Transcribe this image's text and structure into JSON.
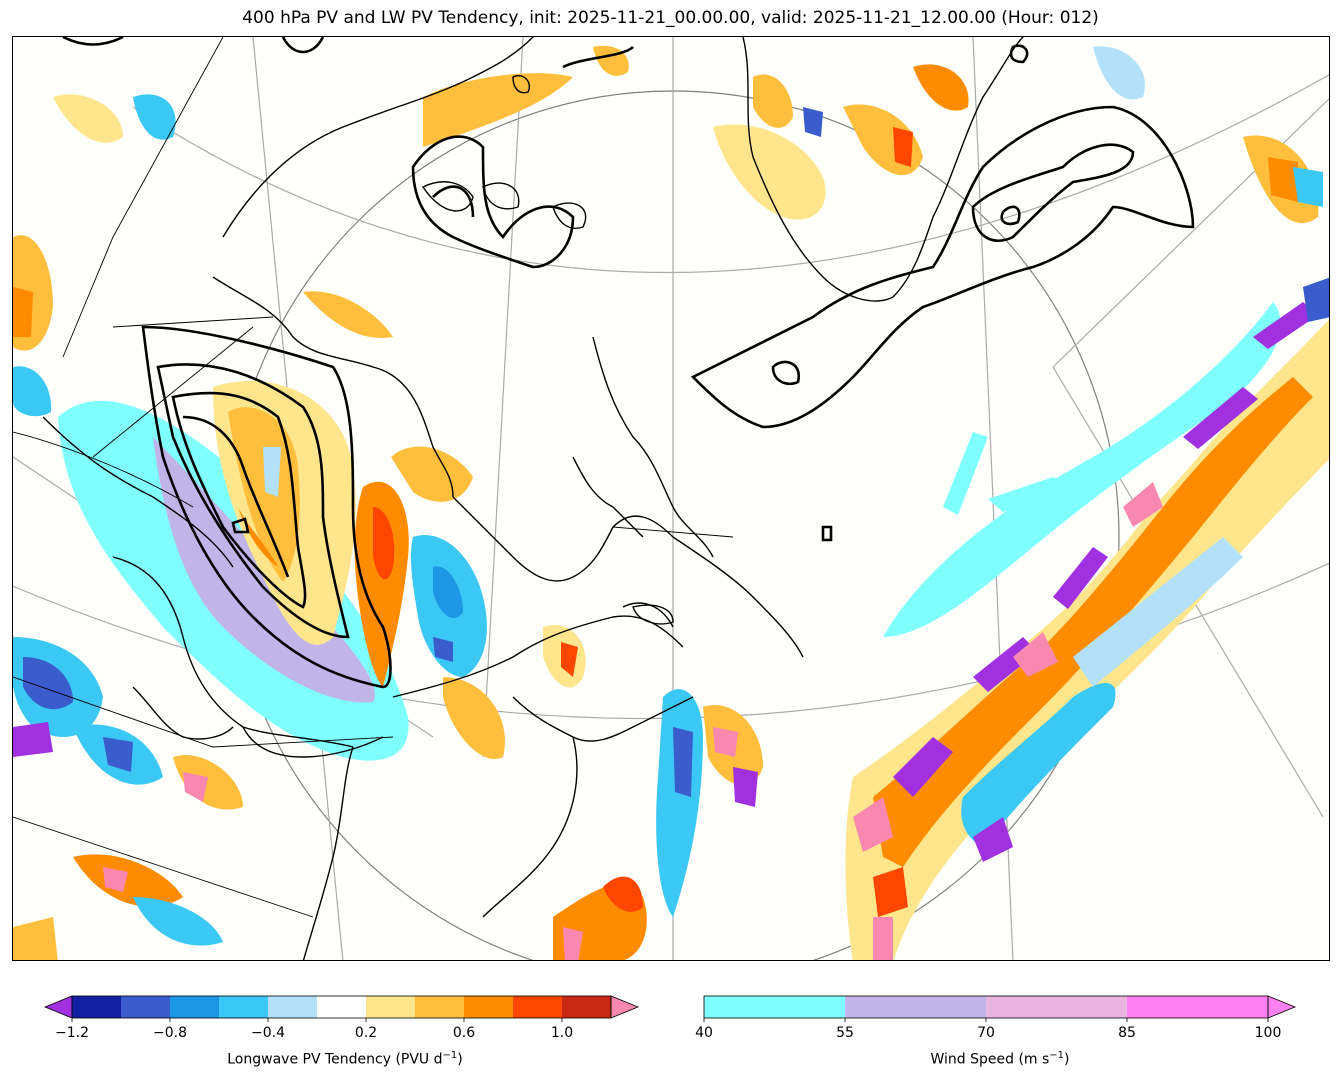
{
  "title": "400 hPa PV and LW PV Tendency, init: 2025-11-21_00.00.00, valid: 2025-11-21_12.00.00 (Hour: 012)",
  "colors": {
    "pv_tendency": [
      "#a030e0",
      "#1020a0",
      "#3a5ccc",
      "#1e96e6",
      "#3cc8f5",
      "#b4e1fa",
      "#ffffff",
      "#ffe68c",
      "#ffbe3c",
      "#ff8c00",
      "#ff4600",
      "#c82814",
      "#f888b0"
    ],
    "wind_speed": [
      "#80ffff",
      "#c0b4e8",
      "#e8b4e0",
      "#ff80f0"
    ],
    "pv_contour": "#000000"
  },
  "pv_tendency_colorbar": {
    "label": "Longwave PV Tendency (PVU d",
    "label_sup": "−1",
    "label_end": ")",
    "ticks": [
      "−1.2",
      "−0.8",
      "−0.4",
      "0.2",
      "0.6",
      "1.0"
    ]
  },
  "wind_colorbar": {
    "label": "Wind Speed (m s",
    "label_sup": "−1",
    "label_end": ")",
    "ticks": [
      "40",
      "55",
      "70",
      "85",
      "100"
    ]
  }
}
